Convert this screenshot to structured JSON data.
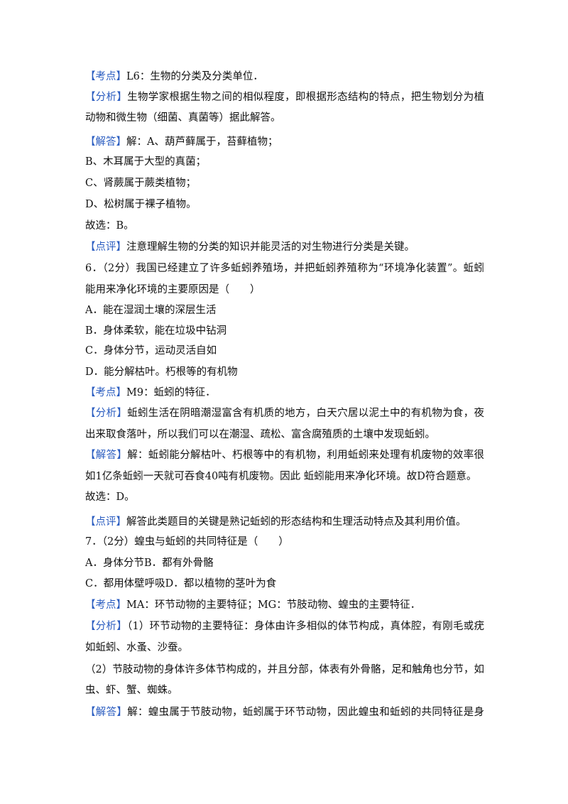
{
  "lines": [
    {
      "tag": "【考点】",
      "text": "L6：生物的分类及分类单位．"
    },
    {
      "tag": "【分析】",
      "text": "生物学家根据生物之间的相似程度，即根据形态结构的特点，把生物划分为植物"
    },
    {
      "text": "动物和微生物（细菌、真菌等）据此解答。"
    },
    {
      "tag": "【解答】",
      "text": "解：A、葫芦藓属于，苔藓植物；"
    },
    {
      "text": "B、木耳属于大型的真菌；"
    },
    {
      "text": "C、肾蕨属于蕨类植物；"
    },
    {
      "text": "D、松树属于裸子植物。"
    },
    {
      "text": "故选：B。"
    },
    {
      "tag": "【点评】",
      "text": "注意理解生物的分类的知识并能灵活的对生物进行分类是关键。"
    },
    {
      "text": "6．（2分）我国已经建立了许多蚯蚓养殖场，并把蚯蚓养殖称为“环境净化装置”。蚯蚓"
    },
    {
      "text": "能用来净化环境的主要原因是（　　）"
    },
    {
      "text": "A．能在湿润土壤的深层生活"
    },
    {
      "text": "B．身体柔软，能在垃圾中钻洞"
    },
    {
      "text": "C．身体分节，运动灵活自如"
    },
    {
      "text": "D．能分解枯叶。朽根等的有机物"
    },
    {
      "tag": "【考点】",
      "text": "M9：蚯蚓的特征．"
    },
    {
      "tag": "【分析】",
      "text": "蚯蚓生活在阴暗潮湿富含有机质的地方，白天穴居以泥土中的有机物为食，夜间"
    },
    {
      "text": "出来取食落叶，所以我们可以在潮湿、疏松、富含腐殖质的土壤中发现蚯蚓。"
    },
    {
      "tag": "【解答】",
      "text": "解：蚯蚓能分解枯叶、朽根等中的有机物，利用蚯蚓来处理有机废物的效率很高"
    },
    {
      "text": "如1亿条蚯蚓一天就可吞食40吨有机废物。因此 蚯蚓能用来净化环境。故D符合题意。"
    },
    {
      "text": "故选：D。"
    },
    {
      "tag": "【点评】",
      "text": "解答此类题目的关键是熟记蚯蚓的形态结构和生理活动特点及其利用价值。"
    },
    {
      "text": "7．（2分）蝗虫与蚯蚓的共同特征是（　　）"
    },
    {
      "text": "A．身体分节B．都有外骨骼"
    },
    {
      "text": "C．都用体壁呼吸D．都以植物的茎叶为食"
    },
    {
      "tag": "【考点】",
      "text": "MA：环节动物的主要特征；MG：节肢动物、蝗虫的主要特征．"
    },
    {
      "tag": "【分析】",
      "text": "（1）环节动物的主要特征：身体由许多相似的体节构成，真体腔，有刚毛或疣足，"
    },
    {
      "text": "如蚯蚓、水蚤、沙蚕。"
    },
    {
      "text": "（2）节肢动物的身体许多体节构成的，并且分部，体表有外骨骼，足和触角也分节，如蝗"
    },
    {
      "text": "虫、虾、蟹、蜘蛛。"
    },
    {
      "tag": "【解答】",
      "text": "解：蝗虫属于节肢动物，蚯蚓属于环节动物，因此蝗虫和蚯蚓的共同特征是身体"
    }
  ]
}
